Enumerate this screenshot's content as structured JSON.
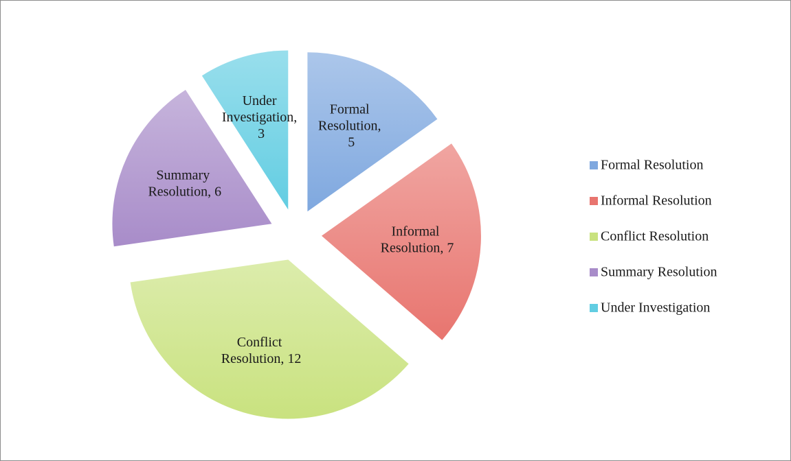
{
  "chart_data": {
    "type": "pie",
    "categories": [
      "Formal Resolution",
      "Informal Resolution",
      "Conflict Resolution",
      "Summary Resolution",
      "Under Investigation"
    ],
    "values": [
      5,
      7,
      12,
      6,
      3
    ],
    "value_labels": [
      "Formal Resolution, 5",
      "Informal Resolution, 7",
      "Conflict Resolution, 12",
      "Summary Resolution, 6",
      "Under Investigation, 3"
    ],
    "colors": [
      "#7fa8df",
      "#e8756f",
      "#c9e27f",
      "#a88cc9",
      "#62cde2"
    ],
    "legend": "right"
  }
}
